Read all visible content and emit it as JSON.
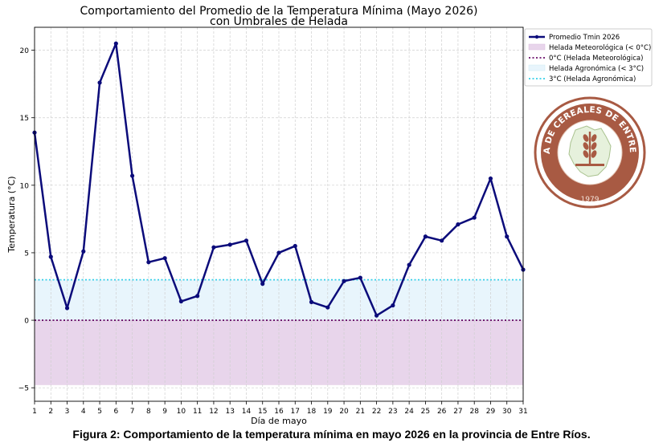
{
  "chart_data": {
    "type": "line",
    "title": "Comportamiento del Promedio de la Temperatura Mínima (Mayo 2026)",
    "subtitle": "con Umbrales de Helada",
    "xlabel": "Día de mayo",
    "ylabel": "Temperatura (°C)",
    "xlim": [
      1,
      31
    ],
    "ylim": [
      -6,
      21.7
    ],
    "x_ticks": [
      1,
      2,
      3,
      4,
      5,
      6,
      7,
      8,
      9,
      10,
      11,
      12,
      13,
      14,
      15,
      16,
      17,
      18,
      19,
      20,
      21,
      22,
      23,
      24,
      25,
      26,
      27,
      28,
      29,
      30,
      31
    ],
    "y_ticks": [
      -5,
      0,
      5,
      10,
      15,
      20
    ],
    "grid": true,
    "legend_position": "upper-right-outside",
    "series": [
      {
        "name": "Promedio Tmin 2026",
        "color": "#0b0b7a",
        "x": [
          1,
          2,
          3,
          4,
          5,
          6,
          7,
          8,
          9,
          10,
          11,
          12,
          13,
          14,
          15,
          16,
          17,
          18,
          19,
          20,
          21,
          22,
          23,
          24,
          25,
          26,
          27,
          28,
          29,
          30,
          31
        ],
        "values": [
          13.9,
          4.7,
          0.9,
          5.1,
          17.6,
          20.5,
          10.7,
          4.3,
          4.6,
          1.4,
          1.8,
          5.4,
          5.6,
          5.9,
          2.7,
          5.0,
          5.5,
          1.35,
          0.95,
          2.9,
          3.15,
          0.35,
          1.1,
          4.1,
          6.2,
          5.9,
          7.1,
          7.6,
          10.5,
          6.2,
          3.75
        ]
      }
    ],
    "bands": [
      {
        "name": "Helada Meteorológica (< 0°C)",
        "from": -4.8,
        "to": 0,
        "color": "#e8d5eb"
      },
      {
        "name": "Helada Agronómica (< 3°C)",
        "from": 0,
        "to": 3,
        "color": "#e8f5fc"
      }
    ],
    "thresholds": [
      {
        "name": "0°C (Helada Meteorológica)",
        "value": 0,
        "color": "#6a0f6a"
      },
      {
        "name": "3°C (Helada Agronómica)",
        "value": 3,
        "color": "#35d0e8"
      }
    ]
  },
  "logo": {
    "text_top": "BOLSA DE CEREALES DE ENTRE RÍOS",
    "year": "1979",
    "color": "#a85a43"
  },
  "caption": "Figura 2: Comportamiento de la temperatura mínima en mayo 2026 en la provincia de Entre Ríos."
}
